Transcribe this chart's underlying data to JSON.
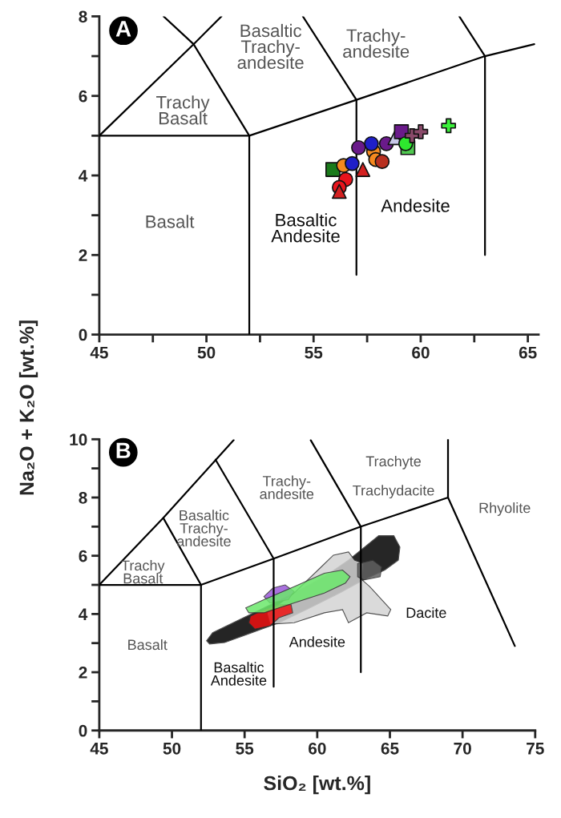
{
  "chart_data": [
    {
      "type": "scatter",
      "title": "A",
      "ylabel": "Na₂O + K₂O [wt.%]",
      "xlim": [
        45,
        65.5
      ],
      "ylim": [
        0,
        8
      ],
      "xticks": [
        45,
        {
          "value": 47.5,
          "label": null
        },
        50,
        {
          "value": 52.5,
          "label": null
        },
        55,
        {
          "value": 57.5,
          "label": null
        },
        60,
        {
          "value": 62.5,
          "label": null
        },
        65
      ],
      "yticks": [
        0,
        {
          "value": 1,
          "label": null
        },
        2,
        {
          "value": 3,
          "label": null
        },
        4,
        {
          "value": 5,
          "label": null
        },
        6,
        {
          "value": 7,
          "label": null
        },
        8
      ],
      "grid": false,
      "legend": false,
      "annotations": [
        "Basalt",
        "Trachy\nBasalt",
        "Basaltic\nTrachy-\nandesite",
        "Trachy-\nandesite",
        "Basaltic\nAndesite",
        "Andesite"
      ],
      "series": [
        {
          "type": "line",
          "color": "#000000",
          "x": [
            45,
            52,
            52
          ],
          "values": [
            5,
            5,
            0
          ]
        },
        {
          "type": "line",
          "color": "#000000",
          "x": [
            45,
            49.4,
            52
          ],
          "values": [
            5,
            7.3,
            5
          ]
        },
        {
          "type": "line",
          "color": "#000000",
          "x": [
            48.0,
            49.4
          ],
          "values": [
            8,
            7.3
          ]
        },
        {
          "type": "line",
          "color": "#000000",
          "x": [
            49.4,
            50.7
          ],
          "values": [
            7.3,
            8
          ]
        },
        {
          "type": "line",
          "color": "#000000",
          "x": [
            52,
            57,
            63,
            65.3
          ],
          "values": [
            5,
            5.9,
            7,
            7.3
          ]
        },
        {
          "type": "line",
          "color": "#000000",
          "x": [
            57,
            57
          ],
          "values": [
            1.5,
            5.9
          ]
        },
        {
          "type": "line",
          "color": "#000000",
          "x": [
            63,
            63
          ],
          "values": [
            2,
            7
          ]
        },
        {
          "type": "line",
          "color": "#000000",
          "x": [
            54.5,
            57
          ],
          "values": [
            8,
            5.9
          ]
        },
        {
          "type": "line",
          "color": "#000000",
          "x": [
            61.8,
            63
          ],
          "values": [
            8,
            7
          ]
        },
        {
          "marker": "square",
          "color": "#1a7a1a",
          "x": [
            55.9
          ],
          "values": [
            4.15
          ]
        },
        {
          "marker": "circle",
          "color": "#e8141c",
          "x": [
            56.5,
            56.2
          ],
          "values": [
            3.9,
            3.7
          ]
        },
        {
          "marker": "triangle",
          "color": "#d42020",
          "x": [
            56.2,
            57.3
          ],
          "values": [
            3.6,
            4.15
          ]
        },
        {
          "marker": "circle",
          "color": "#f5891f",
          "x": [
            56.4,
            57.8,
            57.9
          ],
          "values": [
            4.25,
            4.6,
            4.4
          ]
        },
        {
          "marker": "circle",
          "color": "#1f1fc8",
          "x": [
            56.8,
            57.7
          ],
          "values": [
            4.3,
            4.8
          ]
        },
        {
          "marker": "circle",
          "color": "#6a1a8a",
          "x": [
            57.1,
            58.4
          ],
          "values": [
            4.7,
            4.8
          ]
        },
        {
          "marker": "circle",
          "color": "#b83020",
          "x": [
            58.2
          ],
          "values": [
            4.35
          ]
        },
        {
          "marker": "triangle",
          "color": "#c8c8e8",
          "x": [
            58.8
          ],
          "values": [
            4.95
          ]
        },
        {
          "marker": "square",
          "color": "#6a1a8a",
          "x": [
            59.1
          ],
          "values": [
            5.1
          ]
        },
        {
          "marker": "square",
          "color": "#50c850",
          "x": [
            59.4
          ],
          "values": [
            4.7
          ]
        },
        {
          "marker": "circle",
          "color": "#2ee82e",
          "x": [
            59.3
          ],
          "values": [
            4.8
          ]
        },
        {
          "marker": "cross",
          "color": "#8a4a6a",
          "x": [
            59.6,
            60.0
          ],
          "values": [
            5.0,
            5.1
          ]
        },
        {
          "marker": "cross",
          "color": "#3af03a",
          "x": [
            61.3
          ],
          "values": [
            5.25
          ]
        }
      ]
    },
    {
      "type": "area",
      "title": "B",
      "xlabel": "SiO₂ [wt.%]",
      "xlim": [
        45,
        75
      ],
      "ylim": [
        0,
        10
      ],
      "xticks": [
        45,
        50,
        55,
        60,
        65,
        70,
        75
      ],
      "yticks": [
        0,
        {
          "value": 1,
          "label": null
        },
        2,
        {
          "value": 3,
          "label": null
        },
        4,
        {
          "value": 5,
          "label": null
        },
        6,
        {
          "value": 7,
          "label": null
        },
        8,
        {
          "value": 9,
          "label": null
        },
        10
      ],
      "grid": false,
      "legend": false,
      "annotations": [
        "Basalt",
        "Trachy\nBasalt",
        "Basaltic\nTrachy-\nandesite",
        "Trachy-\nandesite",
        "Trachyte",
        "Trachydacite",
        "Rhyolite",
        "Basaltic\nAndesite",
        "Andesite",
        "Dacite"
      ],
      "series": [
        {
          "color": "#000000",
          "x": [
            52.38,
            52.8,
            54.67,
            56.33,
            58.41,
            60.49,
            62.15,
            64.23,
            65.27,
            65.69,
            65.58,
            64.65,
            63.19,
            61.53,
            59.24,
            57.37,
            55.5,
            53.63,
            52.59
          ],
          "values": [
            3.08,
            3.36,
            3.81,
            4.21,
            4.72,
            5.28,
            5.85,
            6.69,
            6.69,
            6.3,
            5.85,
            5.51,
            5.17,
            4.72,
            4.15,
            3.7,
            3.36,
            3.02,
            2.97
          ]
        },
        {
          "color": "#d4d4d4",
          "x": [
            56.54,
            58.41,
            60.28,
            61.11,
            62.15,
            62.57,
            63.19,
            63.09,
            63.61,
            65.06,
            64.85,
            63.4,
            62.15,
            61.74,
            60.49,
            58.41,
            56.75
          ],
          "values": [
            4.04,
            4.72,
            5.62,
            6.02,
            6.13,
            5.85,
            5.73,
            5.17,
            4.94,
            4.15,
            3.93,
            4.04,
            3.7,
            4.15,
            4.04,
            3.7,
            3.65
          ]
        },
        {
          "color": "#606060",
          "x": [
            62.78,
            63.82,
            64.44,
            64.33,
            63.19,
            62.78
          ],
          "values": [
            5.73,
            5.85,
            5.62,
            5.28,
            5.17,
            5.28
          ]
        },
        {
          "color": "#ee1111",
          "x": [
            55.4,
            56.33,
            57.37,
            58.2,
            58.31,
            57.37,
            56.75,
            55.71,
            55.29
          ],
          "values": [
            3.93,
            4.15,
            4.32,
            4.32,
            4.04,
            3.87,
            3.59,
            3.48,
            3.7
          ]
        },
        {
          "color": "#9b59d9",
          "x": [
            56.33,
            56.95,
            57.79,
            58.41,
            58.0,
            56.75
          ],
          "values": [
            4.6,
            4.89,
            5.0,
            4.77,
            4.49,
            4.38
          ]
        },
        {
          "color": "#6be86b",
          "x": [
            55.08,
            56.33,
            58.41,
            60.49,
            61.74,
            62.26,
            61.94,
            60.49,
            58.41,
            56.33,
            55.29
          ],
          "values": [
            4.21,
            4.49,
            4.94,
            5.4,
            5.51,
            5.28,
            5.06,
            4.72,
            4.38,
            4.04,
            4.04
          ]
        },
        {
          "type": "line",
          "color": "#000000",
          "x": [
            45,
            52,
            52
          ],
          "values": [
            5,
            5,
            0
          ]
        },
        {
          "type": "line",
          "color": "#000000",
          "x": [
            45,
            49.4,
            54.25
          ],
          "values": [
            5,
            7.3,
            9.97
          ]
        },
        {
          "type": "line",
          "color": "#000000",
          "x": [
            49.4,
            52
          ],
          "values": [
            7.3,
            5
          ]
        },
        {
          "type": "line",
          "color": "#000000",
          "x": [
            53.0,
            57
          ],
          "values": [
            9.3,
            5.9
          ]
        },
        {
          "type": "line",
          "color": "#000000",
          "x": [
            52,
            57,
            63,
            69
          ],
          "values": [
            5,
            5.9,
            7,
            8
          ]
        },
        {
          "type": "line",
          "color": "#000000",
          "x": [
            57,
            57
          ],
          "values": [
            1.5,
            5.9
          ]
        },
        {
          "type": "line",
          "color": "#000000",
          "x": [
            63,
            63
          ],
          "values": [
            2,
            7
          ]
        },
        {
          "type": "line",
          "color": "#000000",
          "x": [
            59.55,
            63
          ],
          "values": [
            9.97,
            7
          ]
        },
        {
          "type": "line",
          "color": "#000000",
          "x": [
            69,
            69,
            73.6
          ],
          "values": [
            10,
            8,
            2.9
          ]
        }
      ]
    }
  ]
}
